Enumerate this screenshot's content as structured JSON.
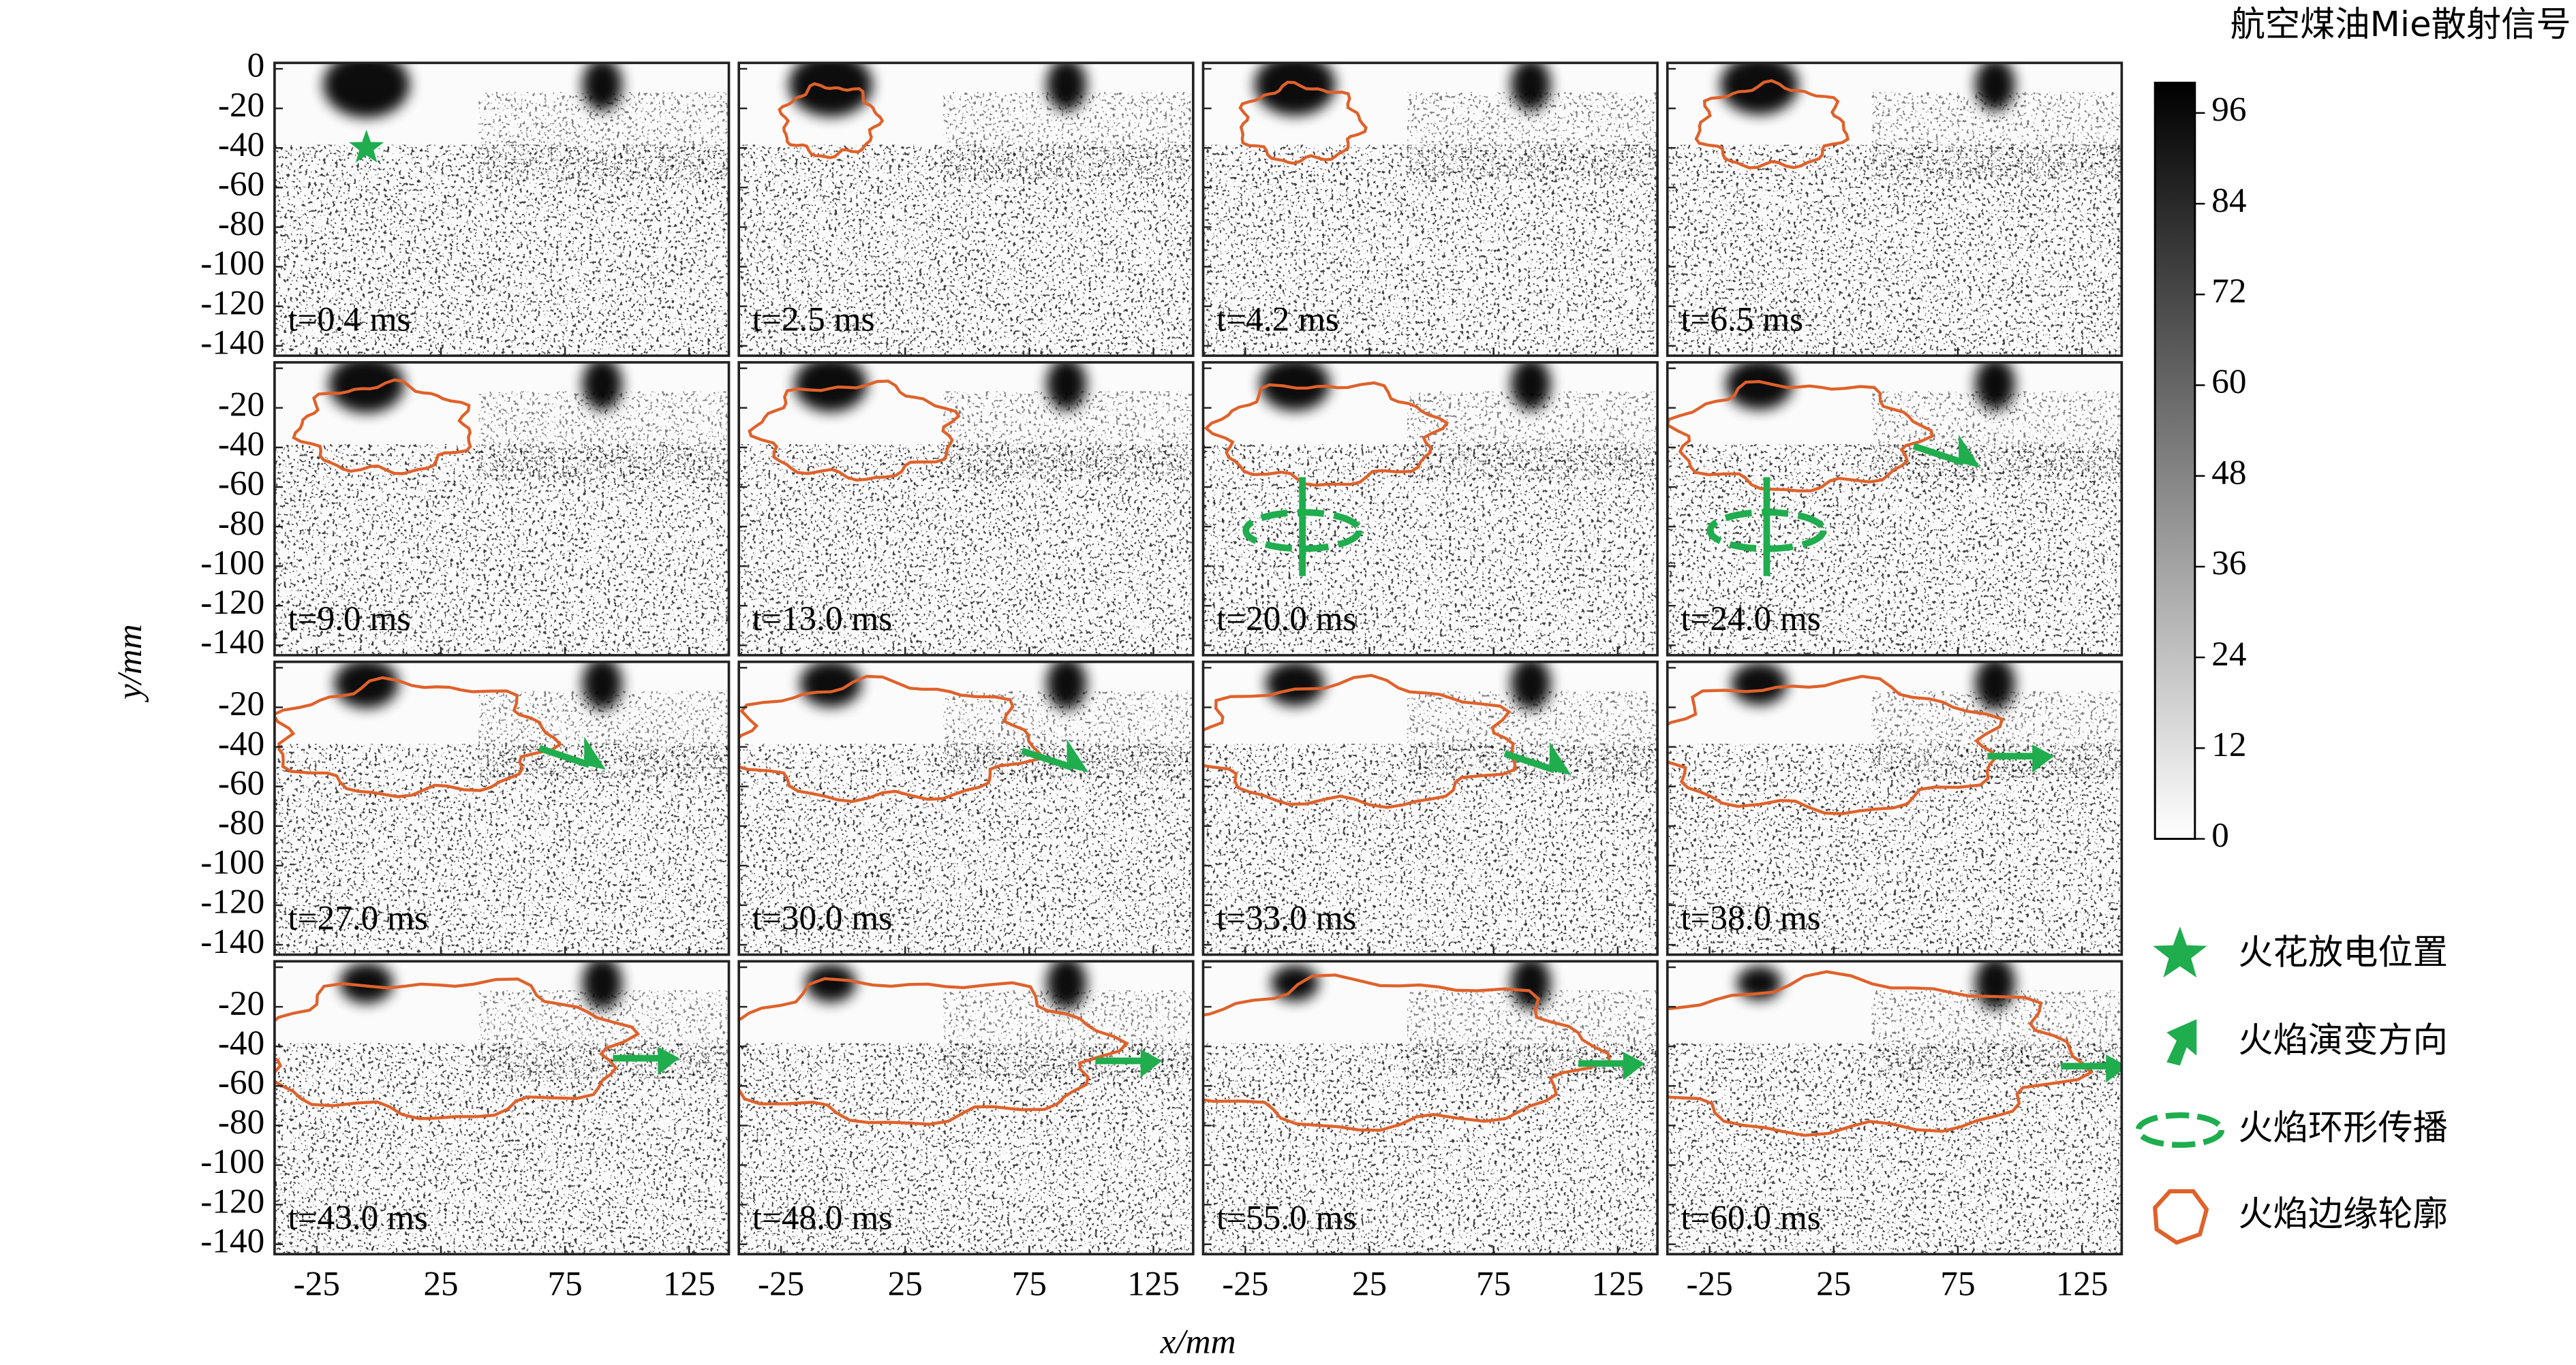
{
  "chart_data": {
    "type": "image-grid",
    "xlabel": "x/mm",
    "ylabel": "y/mm",
    "xlim": [
      -42,
      141
    ],
    "xticks": [
      -25,
      25,
      75,
      125
    ],
    "ylim": [
      -145,
      3
    ],
    "yticks": [
      0,
      -20,
      -40,
      -60,
      -80,
      -100,
      -120,
      -140
    ],
    "columns": 4,
    "panels": [
      {
        "label": "t=0.4 ms"
      },
      {
        "label": "t=2.5 ms"
      },
      {
        "label": "t=4.2 ms"
      },
      {
        "label": "t=6.5 ms"
      },
      {
        "label": "t=9.0 ms"
      },
      {
        "label": "t=13.0 ms"
      },
      {
        "label": "t=20.0 ms"
      },
      {
        "label": "t=24.0 ms"
      },
      {
        "label": "t=27.0 ms"
      },
      {
        "label": "t=30.0 ms"
      },
      {
        "label": "t=33.0 ms"
      },
      {
        "label": "t=38.0 ms"
      },
      {
        "label": "t=43.0 ms"
      },
      {
        "label": "t=48.0 ms"
      },
      {
        "label": "t=55.0 ms"
      },
      {
        "label": "t=60.0 ms"
      }
    ],
    "colorbar": {
      "title": "航空煤油Mie散射信号",
      "lim": [
        0,
        100
      ],
      "ticks": [
        0,
        12,
        24,
        36,
        48,
        60,
        72,
        84,
        96
      ],
      "colors": [
        "#ffffff",
        "#000000"
      ]
    },
    "contour_color": "#e0612a",
    "marker_color": "#1fad4e",
    "legend": [
      {
        "marker": "star",
        "label": "火花放电位置"
      },
      {
        "marker": "arrow",
        "label": "火焰演变方向"
      },
      {
        "marker": "ring",
        "label": "火焰环形传播"
      },
      {
        "marker": "contour",
        "label": "火焰边缘轮廓"
      }
    ]
  }
}
